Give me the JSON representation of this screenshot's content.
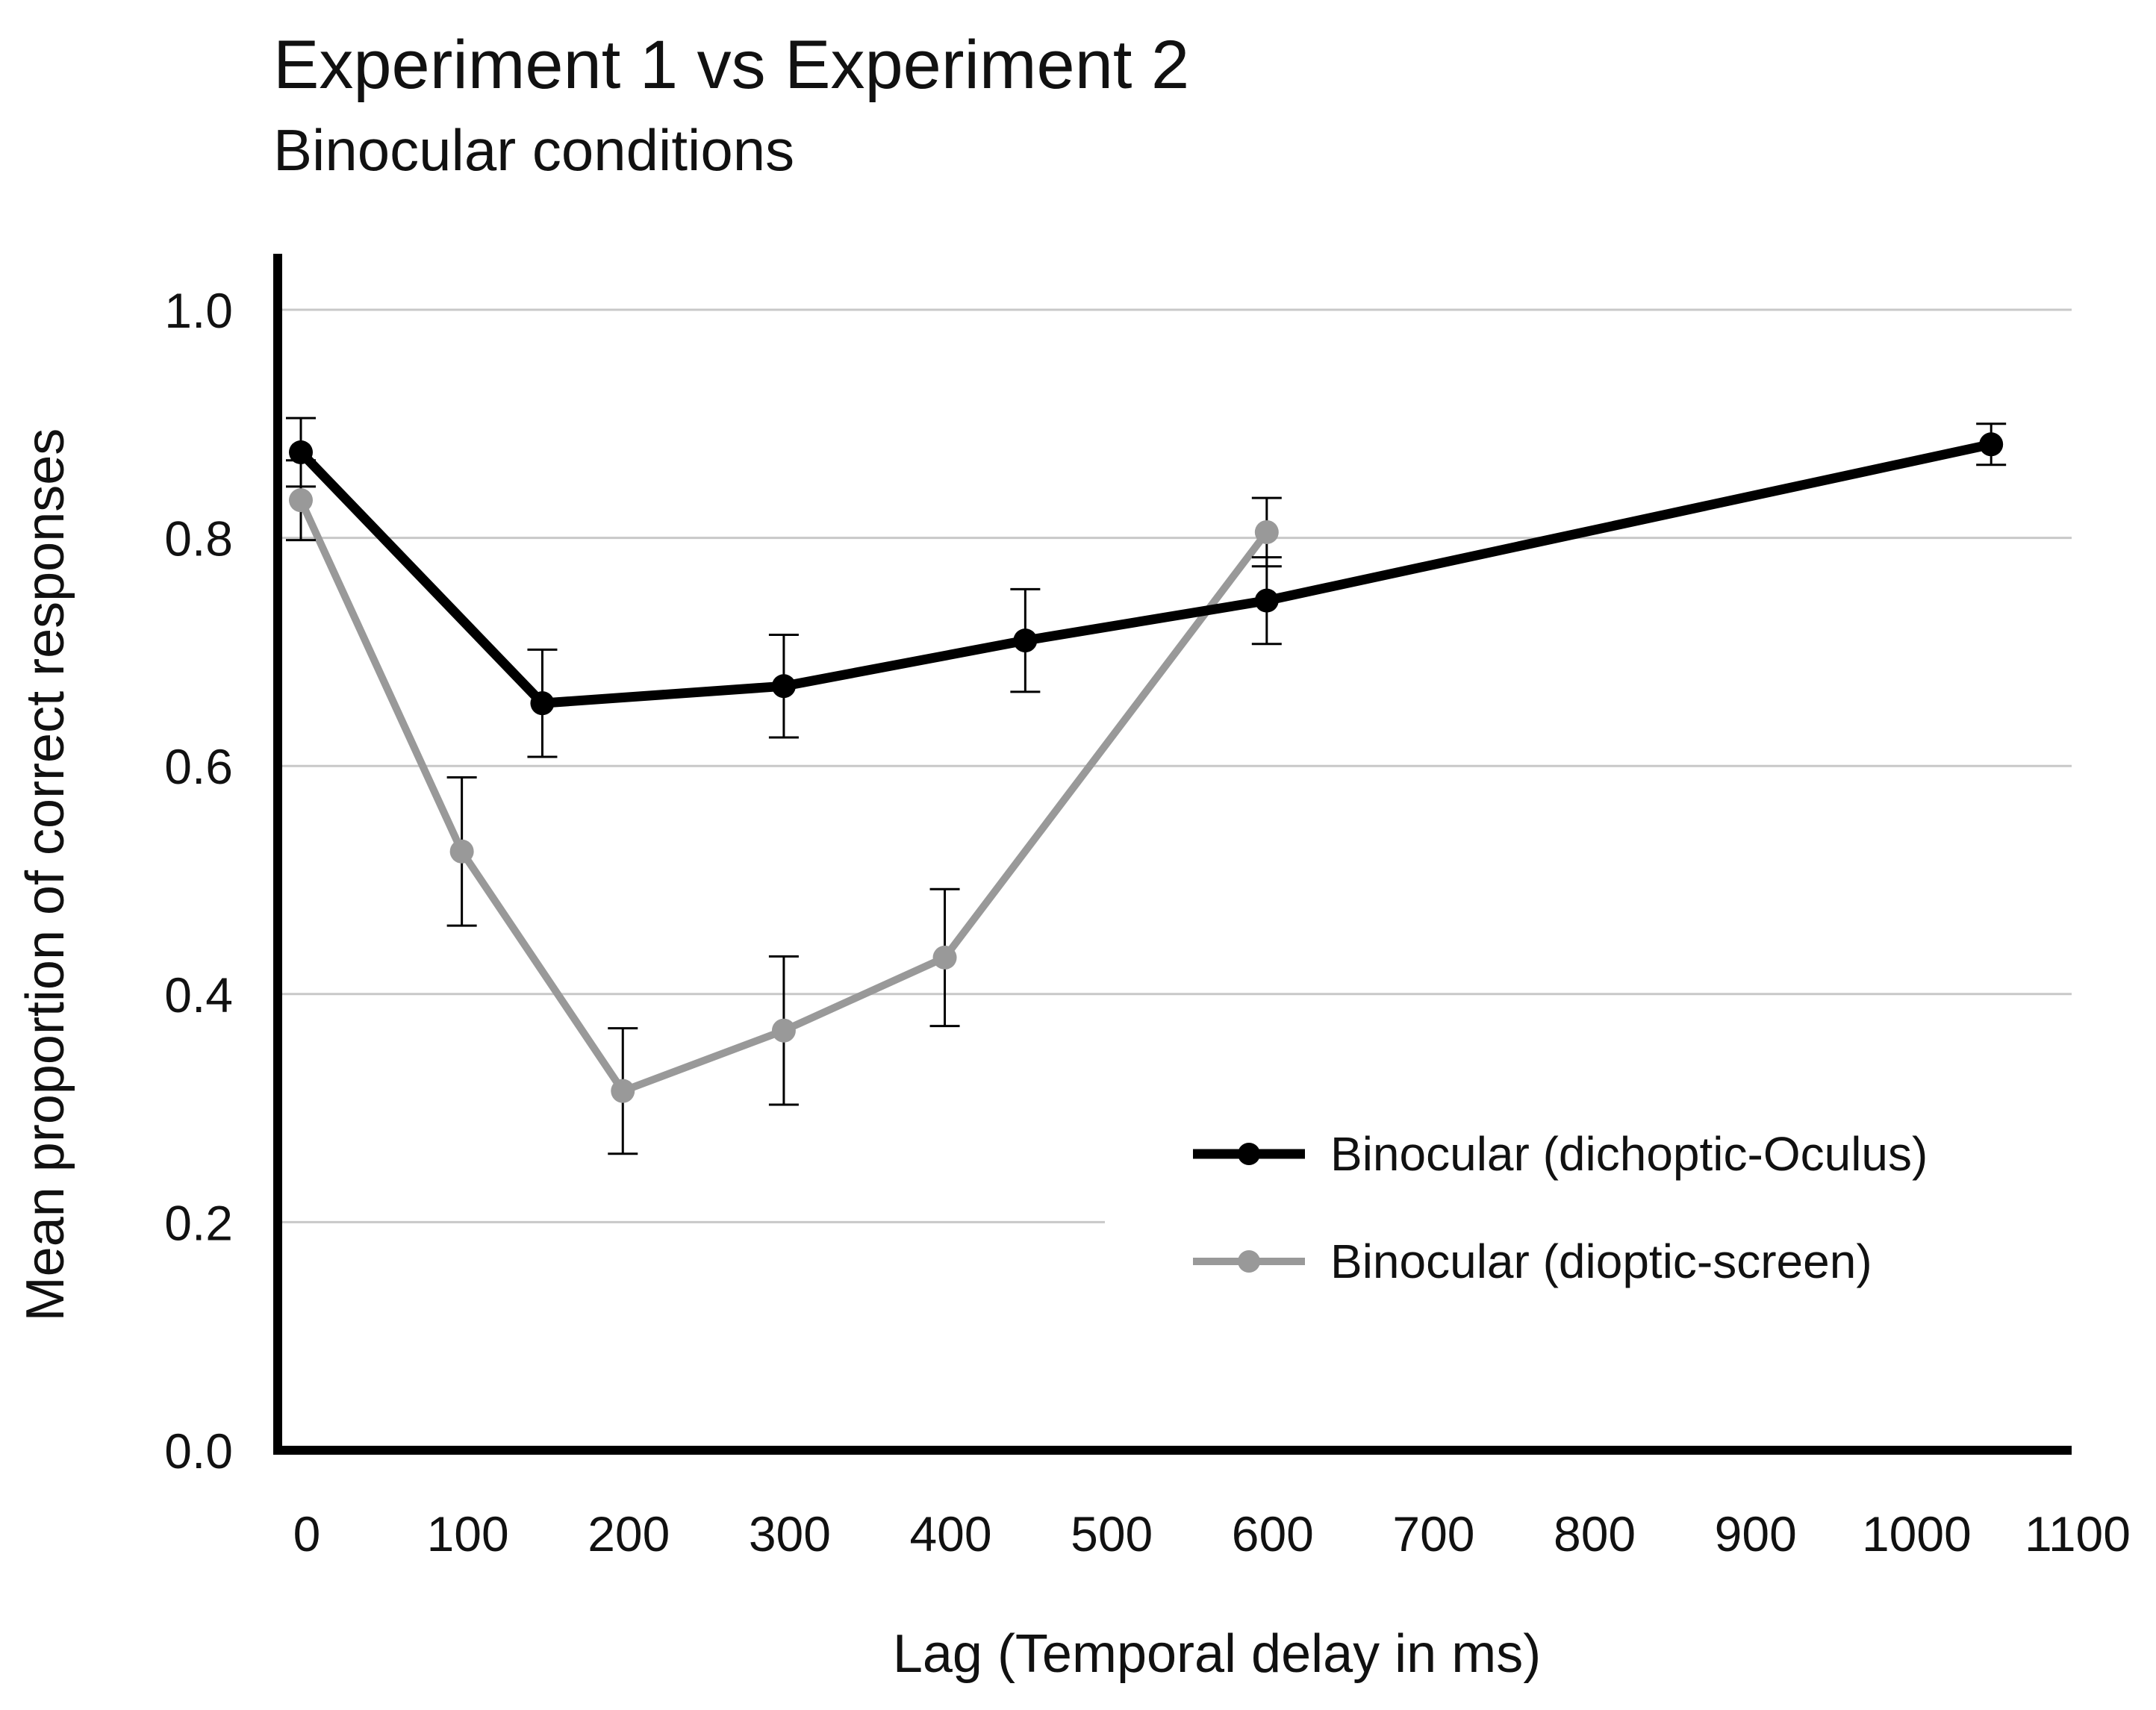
{
  "chart_data": {
    "type": "line",
    "title": "Experiment 1 vs Experiment 2",
    "subtitle": "Binocular conditions",
    "xlabel": "Lag (Temporal delay in ms)",
    "ylabel": "Mean proportion of correct responses",
    "xlim": [
      -15,
      1100
    ],
    "ylim": [
      0,
      1.0
    ],
    "x_ticks": [
      0,
      100,
      200,
      300,
      400,
      500,
      600,
      700,
      800,
      900,
      1000,
      1100
    ],
    "x_tick_labels": [
      "0",
      "100",
      "200",
      "300",
      "400",
      "500",
      "600",
      "700",
      "800",
      "900",
      "1000",
      "1100"
    ],
    "y_ticks": [
      0.0,
      0.2,
      0.4,
      0.6,
      0.8,
      1.0
    ],
    "y_tick_labels": [
      "0.0",
      "0.2",
      "0.4",
      "0.6",
      "0.8",
      "1.0"
    ],
    "grid": "horizontal",
    "legend_position": "lower-right",
    "series": [
      {
        "name": "Binocular (dichoptic-Oculus)",
        "color": "#000000",
        "x": [
          0,
          150,
          300,
          450,
          600,
          1050
        ],
        "y": [
          0.875,
          0.655,
          0.67,
          0.71,
          0.745,
          0.882
        ],
        "err": [
          0.03,
          0.047,
          0.045,
          0.045,
          0.038,
          0.018
        ]
      },
      {
        "name": "Binocular (dioptic-screen)",
        "color": "#999999",
        "x": [
          0,
          100,
          200,
          300,
          400,
          600
        ],
        "y": [
          0.833,
          0.525,
          0.315,
          0.368,
          0.432,
          0.805
        ],
        "err": [
          0.035,
          0.065,
          0.055,
          0.065,
          0.06,
          0.03
        ]
      }
    ]
  }
}
